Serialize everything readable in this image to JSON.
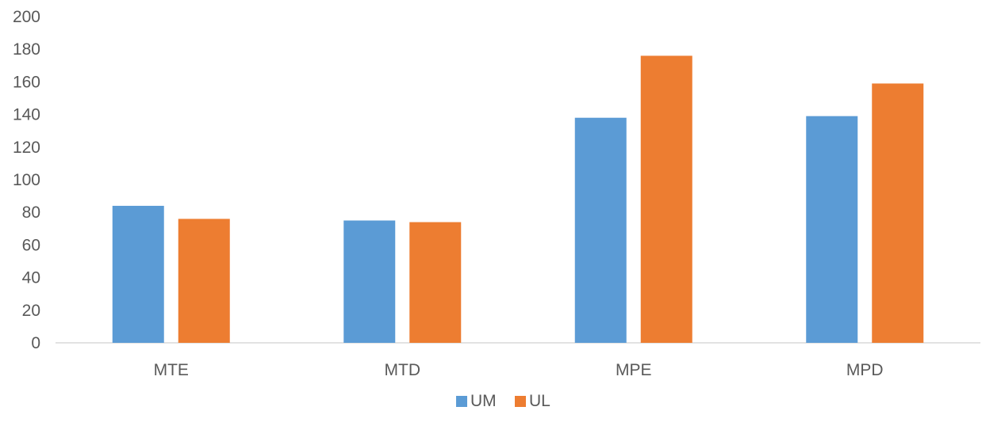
{
  "chart_data": {
    "type": "bar",
    "title": "",
    "xlabel": "",
    "ylabel": "",
    "categories": [
      "MTE",
      "MTD",
      "MPE",
      "MPD"
    ],
    "series": [
      {
        "name": "UM",
        "values": [
          84,
          75,
          138,
          139
        ],
        "color": "#5B9BD5"
      },
      {
        "name": "UL",
        "values": [
          76,
          74,
          176,
          159
        ],
        "color": "#ED7D31"
      }
    ],
    "ylim": [
      0,
      200
    ],
    "yticks": [
      "0",
      "20",
      "40",
      "60",
      "80",
      "100",
      "120",
      "140",
      "160",
      "180",
      "200"
    ],
    "grid": false,
    "legend_position": "bottom"
  }
}
